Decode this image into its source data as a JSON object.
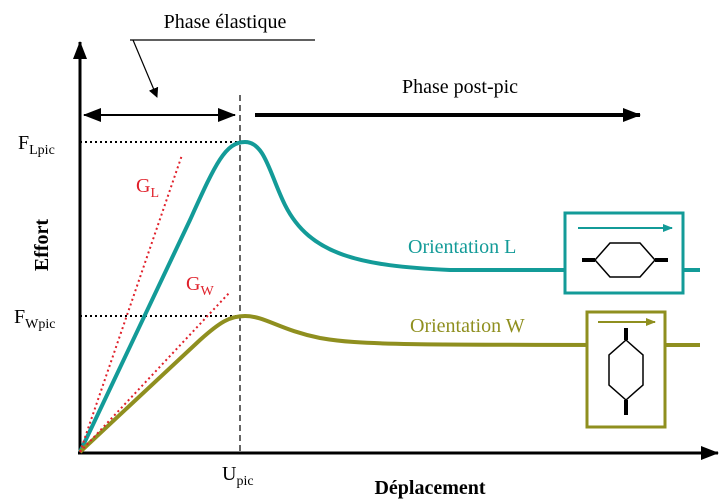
{
  "phase_elastique": "Phase élastique",
  "phase_post_pic": "Phase post-pic",
  "y_axis_label": "Effort",
  "x_axis_label": "Déplacement",
  "f_lpic": {
    "main": "F",
    "sub": "Lpic"
  },
  "f_wpic": {
    "main": "F",
    "sub": "Wpic"
  },
  "u_pic": {
    "main": "U",
    "sub": "pic"
  },
  "g_l": {
    "main": "G",
    "sub": "L"
  },
  "g_w": {
    "main": "G",
    "sub": "W"
  },
  "orientation_l": "Orientation L",
  "orientation_w": "Orientation W"
}
